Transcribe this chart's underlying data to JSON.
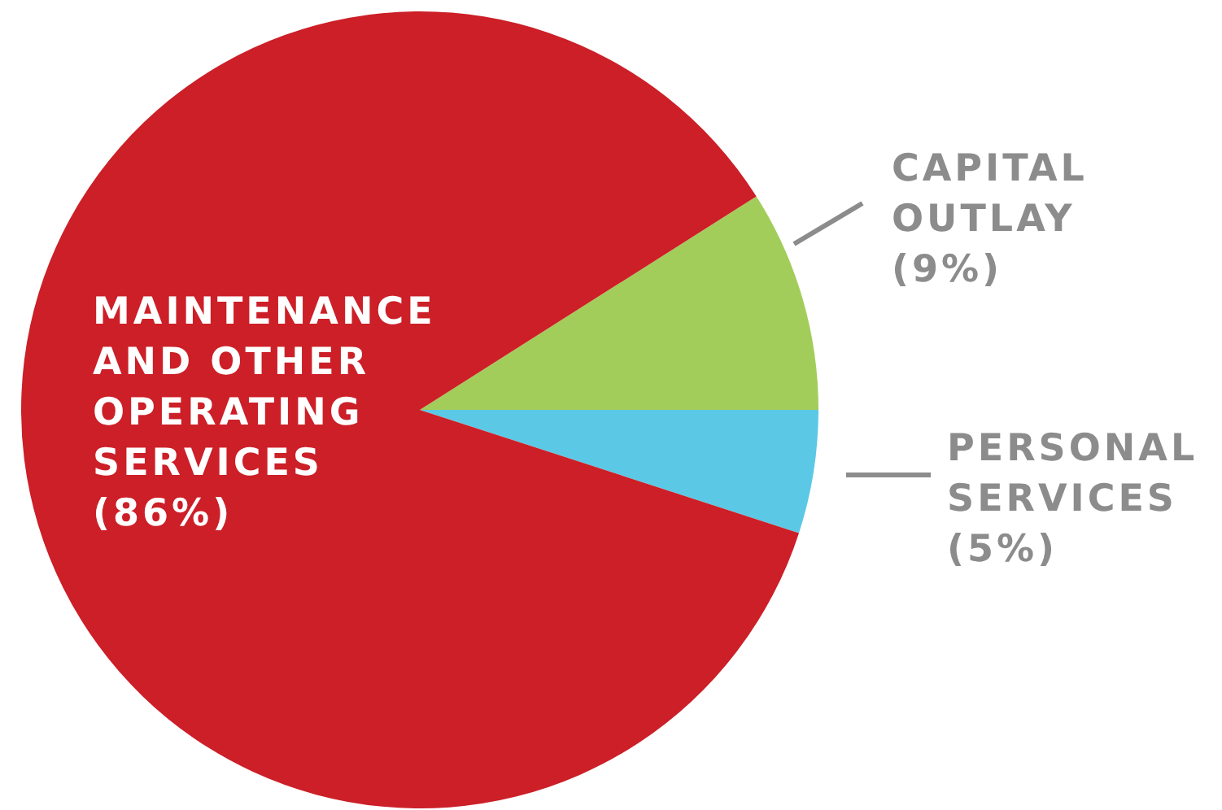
{
  "chart_data": {
    "type": "pie",
    "categories": [
      "CAPITAL OUTLAY",
      "PERSONAL SERVICES",
      "MAINTENANCE AND OTHER OPERATING SERVICES"
    ],
    "values": [
      9,
      5,
      86
    ],
    "colors": [
      "#a2cd5a",
      "#5bc8e6",
      "#cc1f27"
    ],
    "value_labels": [
      "(9%)",
      "(5%)",
      "(86%)"
    ],
    "legend": false
  }
}
